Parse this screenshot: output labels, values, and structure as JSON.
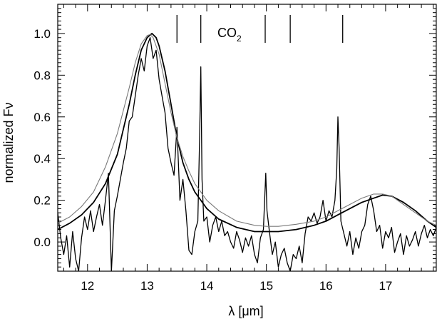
{
  "chart_data": {
    "type": "line",
    "xlabel": "λ [μm]",
    "ylabel": "normalized Fν",
    "xlim": [
      11.5,
      17.85
    ],
    "ylim": [
      -0.14,
      1.14
    ],
    "x_ticks": [
      12,
      13,
      14,
      15,
      16,
      17
    ],
    "x_tick_labels": [
      "12",
      "13",
      "14",
      "15",
      "16",
      "17"
    ],
    "y_ticks": [
      0.0,
      0.2,
      0.4,
      0.6,
      0.8,
      1.0
    ],
    "y_tick_labels": [
      "0.0",
      "0.2",
      "0.4",
      "0.6",
      "0.8",
      "1.0"
    ],
    "grid": false,
    "legend": "none",
    "annotation": {
      "text_main": "CO",
      "text_sub": "2",
      "marker_positions": [
        13.5,
        13.9,
        14.98,
        15.4,
        16.28
      ]
    },
    "series": [
      {
        "style": "noisy spectrum, thin black",
        "color": "#000000",
        "x": [
          11.5,
          11.55,
          11.6,
          11.65,
          11.7,
          11.75,
          11.8,
          11.85,
          11.9,
          11.95,
          12.0,
          12.05,
          12.1,
          12.15,
          12.2,
          12.25,
          12.3,
          12.35,
          12.4,
          12.45,
          12.5,
          12.55,
          12.6,
          12.65,
          12.7,
          12.75,
          12.8,
          12.85,
          12.9,
          12.95,
          13.0,
          13.05,
          13.1,
          13.15,
          13.2,
          13.25,
          13.3,
          13.35,
          13.4,
          13.45,
          13.5,
          13.55,
          13.6,
          13.65,
          13.7,
          13.75,
          13.8,
          13.85,
          13.88,
          13.9,
          13.92,
          13.95,
          14.0,
          14.05,
          14.1,
          14.15,
          14.2,
          14.25,
          14.3,
          14.35,
          14.4,
          14.45,
          14.5,
          14.55,
          14.6,
          14.65,
          14.7,
          14.75,
          14.8,
          14.85,
          14.9,
          14.95,
          14.97,
          14.99,
          15.01,
          15.05,
          15.1,
          15.15,
          15.2,
          15.25,
          15.3,
          15.35,
          15.4,
          15.45,
          15.5,
          15.55,
          15.6,
          15.65,
          15.7,
          15.75,
          15.8,
          15.85,
          15.9,
          15.95,
          16.0,
          16.05,
          16.1,
          16.15,
          16.18,
          16.2,
          16.22,
          16.25,
          16.3,
          16.35,
          16.4,
          16.45,
          16.5,
          16.55,
          16.6,
          16.65,
          16.7,
          16.75,
          16.8,
          16.85,
          16.9,
          16.95,
          17.0,
          17.05,
          17.1,
          17.15,
          17.2,
          17.25,
          17.3,
          17.35,
          17.4,
          17.45,
          17.5,
          17.55,
          17.6,
          17.65,
          17.7,
          17.75,
          17.8,
          17.85
        ],
        "y": [
          0.14,
          0.02,
          -0.06,
          0.03,
          -0.12,
          0.05,
          -0.08,
          -0.14,
          0.02,
          0.12,
          0.06,
          0.15,
          0.05,
          0.12,
          0.18,
          0.08,
          0.2,
          0.33,
          -0.14,
          0.15,
          0.22,
          0.3,
          0.38,
          0.45,
          0.58,
          0.6,
          0.7,
          0.8,
          0.88,
          0.82,
          0.94,
          0.98,
          0.88,
          0.92,
          0.78,
          0.7,
          0.62,
          0.45,
          0.38,
          0.32,
          0.55,
          0.2,
          0.3,
          0.15,
          -0.04,
          -0.06,
          0.05,
          0.1,
          0.5,
          0.84,
          0.3,
          0.1,
          0.12,
          0.0,
          0.08,
          0.12,
          0.05,
          0.1,
          0.03,
          0.05,
          0.0,
          -0.03,
          0.05,
          0.01,
          -0.05,
          0.02,
          -0.02,
          0.03,
          -0.06,
          -0.1,
          0.02,
          0.06,
          0.2,
          0.33,
          0.15,
          0.05,
          -0.06,
          0.0,
          -0.12,
          -0.06,
          -0.03,
          -0.1,
          -0.14,
          -0.06,
          -0.08,
          -0.02,
          -0.1,
          0.04,
          0.12,
          0.1,
          0.14,
          0.09,
          0.12,
          0.2,
          0.1,
          0.15,
          0.12,
          0.2,
          0.35,
          0.6,
          0.45,
          0.1,
          0.04,
          -0.02,
          0.05,
          -0.06,
          0.02,
          -0.03,
          0.05,
          0.08,
          0.18,
          0.22,
          0.15,
          0.05,
          0.08,
          -0.03,
          0.05,
          0.02,
          0.07,
          -0.05,
          0.0,
          0.04,
          -0.06,
          0.03,
          -0.02,
          0.01,
          0.05,
          -0.02,
          0.04,
          0.08,
          0.02,
          0.06,
          0.03,
          0.07
        ]
      },
      {
        "style": "smooth model, thick black",
        "color": "#000000",
        "x": [
          11.5,
          11.7,
          11.9,
          12.1,
          12.3,
          12.5,
          12.7,
          12.8,
          12.9,
          13.0,
          13.08,
          13.15,
          13.2,
          13.3,
          13.4,
          13.5,
          13.6,
          13.7,
          13.8,
          14.0,
          14.2,
          14.5,
          14.8,
          15.0,
          15.2,
          15.5,
          15.8,
          16.0,
          16.2,
          16.4,
          16.6,
          16.8,
          16.95,
          17.1,
          17.3,
          17.5,
          17.7,
          17.85
        ],
        "y": [
          0.06,
          0.09,
          0.13,
          0.19,
          0.28,
          0.42,
          0.66,
          0.8,
          0.92,
          0.98,
          1.0,
          0.98,
          0.94,
          0.82,
          0.66,
          0.5,
          0.38,
          0.3,
          0.24,
          0.16,
          0.11,
          0.07,
          0.05,
          0.05,
          0.05,
          0.06,
          0.08,
          0.1,
          0.13,
          0.16,
          0.19,
          0.21,
          0.225,
          0.22,
          0.19,
          0.15,
          0.1,
          0.07
        ]
      },
      {
        "style": "smooth model, thin grey",
        "color": "#7a7a7a",
        "x": [
          11.5,
          11.7,
          11.9,
          12.1,
          12.3,
          12.5,
          12.7,
          12.8,
          12.9,
          13.0,
          13.05,
          13.1,
          13.2,
          13.3,
          13.4,
          13.5,
          13.6,
          13.7,
          13.8,
          14.0,
          14.2,
          14.5,
          14.8,
          15.0,
          15.2,
          15.5,
          15.8,
          16.0,
          16.2,
          16.4,
          16.6,
          16.8,
          16.95,
          17.1,
          17.3,
          17.5,
          17.7,
          17.85
        ],
        "y": [
          0.09,
          0.12,
          0.17,
          0.24,
          0.36,
          0.52,
          0.74,
          0.86,
          0.95,
          0.99,
          0.995,
          0.98,
          0.9,
          0.76,
          0.62,
          0.5,
          0.41,
          0.34,
          0.28,
          0.2,
          0.15,
          0.1,
          0.08,
          0.075,
          0.075,
          0.085,
          0.1,
          0.12,
          0.15,
          0.18,
          0.21,
          0.23,
          0.23,
          0.22,
          0.18,
          0.14,
          0.1,
          0.08
        ]
      }
    ]
  }
}
